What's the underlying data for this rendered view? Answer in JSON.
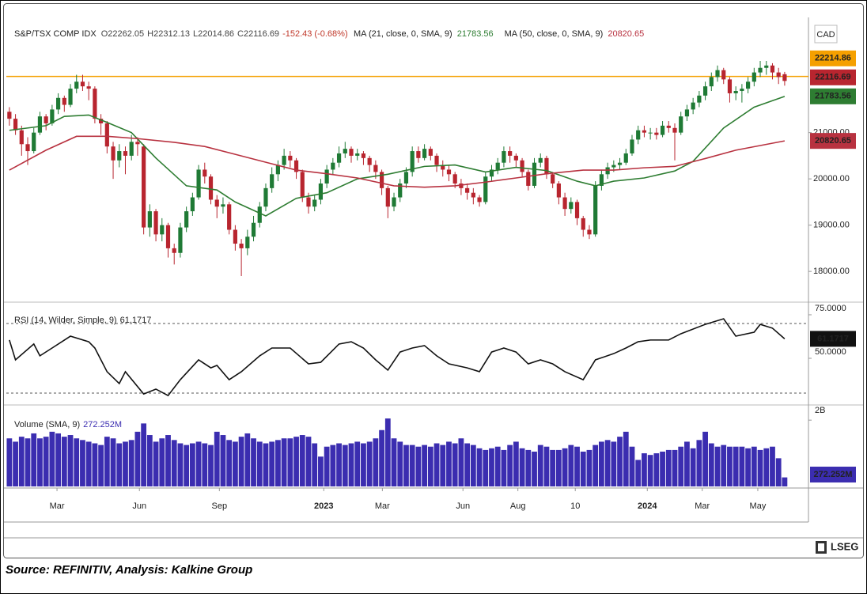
{
  "chart_data": [
    {
      "type": "candlestick",
      "title": "S&P/TSX COMP IDX",
      "header_letters": [
        "O",
        "H",
        "L",
        "C"
      ],
      "change": "-152.43 (-0.68%)",
      "currency": "CAD",
      "up_color": "#1f7a35",
      "down_color": "#b8252f",
      "hline": {
        "value": 22214.86,
        "color": "#f5a000"
      },
      "xlim": [
        -0.5,
        130.9
      ],
      "xticks": [
        {
          "value": 7.8,
          "label": "Mar"
        },
        {
          "value": 21.3,
          "label": "Jun"
        },
        {
          "value": 34.4,
          "label": "Sep"
        },
        {
          "value": 51.5,
          "label": "2023"
        },
        {
          "value": 61.1,
          "label": "Mar"
        },
        {
          "value": 74.3,
          "label": "Jun"
        },
        {
          "value": 83.3,
          "label": "Aug"
        },
        {
          "value": 92.7,
          "label": "10"
        },
        {
          "value": 104.5,
          "label": "2024"
        },
        {
          "value": 113.5,
          "label": "Mar"
        },
        {
          "value": 122.6,
          "label": "May"
        }
      ],
      "ylim": [
        17370,
        23490
      ],
      "yticks": [
        {
          "value": 18000,
          "label": "18000.00"
        },
        {
          "value": 19000,
          "label": "19000.00"
        },
        {
          "value": 20000,
          "label": "20000.00"
        },
        {
          "value": 21000,
          "label": "21000.00"
        }
      ],
      "candles": [
        [
          21450,
          21550,
          21150,
          21300
        ],
        [
          21300,
          21400,
          20950,
          21050
        ],
        [
          21050,
          21150,
          20500,
          20750
        ],
        [
          20750,
          20900,
          20300,
          20600
        ],
        [
          20600,
          21100,
          20550,
          21000
        ],
        [
          21000,
          21450,
          20950,
          21350
        ],
        [
          21350,
          21400,
          21050,
          21200
        ],
        [
          21200,
          21600,
          21150,
          21500
        ],
        [
          21500,
          21850,
          21400,
          21750
        ],
        [
          21750,
          21800,
          21450,
          21600
        ],
        [
          21600,
          22050,
          21550,
          21950
        ],
        [
          21950,
          22250,
          21850,
          22100
        ],
        [
          22100,
          22250,
          21900,
          22000
        ],
        [
          22000,
          22100,
          21700,
          21950
        ],
        [
          21950,
          22000,
          21200,
          21300
        ],
        [
          21300,
          21400,
          20950,
          21200
        ],
        [
          21200,
          21250,
          20550,
          20700
        ],
        [
          20700,
          20800,
          20000,
          20400
        ],
        [
          20400,
          20750,
          20250,
          20600
        ],
        [
          20600,
          20700,
          20100,
          20500
        ],
        [
          20500,
          20950,
          20400,
          20800
        ],
        [
          20800,
          20900,
          20500,
          20750
        ],
        [
          20700,
          20750,
          18800,
          18950
        ],
        [
          18950,
          19450,
          18750,
          19300
        ],
        [
          19300,
          19350,
          18650,
          18800
        ],
        [
          18800,
          19150,
          18650,
          19000
        ],
        [
          19000,
          19050,
          18300,
          18500
        ],
        [
          18500,
          18600,
          18150,
          18400
        ],
        [
          18400,
          19050,
          18300,
          18950
        ],
        [
          18950,
          19400,
          18850,
          19300
        ],
        [
          19300,
          19700,
          19200,
          19600
        ],
        [
          19600,
          20300,
          19550,
          20200
        ],
        [
          20200,
          20350,
          19900,
          20050
        ],
        [
          20050,
          20100,
          19450,
          19550
        ],
        [
          19550,
          19650,
          19150,
          19400
        ],
        [
          19400,
          19600,
          19250,
          19450
        ],
        [
          19450,
          19500,
          18800,
          18900
        ],
        [
          18900,
          19000,
          18450,
          18600
        ],
        [
          18600,
          18700,
          17900,
          18500
        ],
        [
          18500,
          18900,
          18350,
          18750
        ],
        [
          18750,
          19200,
          18650,
          19050
        ],
        [
          19050,
          19500,
          18950,
          19400
        ],
        [
          19400,
          19900,
          19300,
          19800
        ],
        [
          19800,
          20250,
          19700,
          20100
        ],
        [
          20100,
          20400,
          19950,
          20300
        ],
        [
          20300,
          20650,
          20200,
          20500
        ],
        [
          20500,
          20600,
          20250,
          20400
        ],
        [
          20400,
          20450,
          20000,
          20150
        ],
        [
          20150,
          20200,
          19500,
          19600
        ],
        [
          19600,
          19700,
          19250,
          19400
        ],
        [
          19400,
          19650,
          19300,
          19550
        ],
        [
          19550,
          20000,
          19450,
          19900
        ],
        [
          19900,
          20300,
          19800,
          20200
        ],
        [
          20200,
          20450,
          20100,
          20350
        ],
        [
          20350,
          20700,
          20250,
          20550
        ],
        [
          20550,
          20800,
          20450,
          20650
        ],
        [
          20650,
          20700,
          20350,
          20500
        ],
        [
          20500,
          20650,
          20400,
          20550
        ],
        [
          20550,
          20600,
          20300,
          20450
        ],
        [
          20450,
          20500,
          20150,
          20300
        ],
        [
          20300,
          20400,
          20000,
          20150
        ],
        [
          20150,
          20200,
          19650,
          19800
        ],
        [
          19800,
          19850,
          19150,
          19400
        ],
        [
          19400,
          19700,
          19300,
          19600
        ],
        [
          19600,
          20000,
          19500,
          19900
        ],
        [
          19900,
          20250,
          19800,
          20150
        ],
        [
          20150,
          20700,
          20050,
          20600
        ],
        [
          20600,
          20700,
          20350,
          20450
        ],
        [
          20450,
          20750,
          20400,
          20650
        ],
        [
          20650,
          20700,
          20400,
          20500
        ],
        [
          20500,
          20550,
          20150,
          20300
        ],
        [
          20300,
          20400,
          20050,
          20200
        ],
        [
          20200,
          20300,
          19950,
          20100
        ],
        [
          20100,
          20150,
          19800,
          19900
        ],
        [
          19900,
          20000,
          19650,
          19800
        ],
        [
          19800,
          19900,
          19550,
          19700
        ],
        [
          19700,
          19800,
          19450,
          19600
        ],
        [
          19600,
          19650,
          19400,
          19500
        ],
        [
          19500,
          20150,
          19450,
          20050
        ],
        [
          20050,
          20300,
          19950,
          20200
        ],
        [
          20200,
          20450,
          20100,
          20350
        ],
        [
          20350,
          20700,
          20250,
          20600
        ],
        [
          20600,
          20700,
          20350,
          20500
        ],
        [
          20500,
          20550,
          20250,
          20400
        ],
        [
          20400,
          20450,
          20050,
          20150
        ],
        [
          20150,
          20200,
          19750,
          19850
        ],
        [
          19850,
          20450,
          19800,
          20350
        ],
        [
          20350,
          20550,
          20250,
          20450
        ],
        [
          20450,
          20500,
          20000,
          20100
        ],
        [
          20100,
          20150,
          19800,
          19900
        ],
        [
          19900,
          19950,
          19450,
          19600
        ],
        [
          19600,
          19700,
          19200,
          19350
        ],
        [
          19350,
          19600,
          19250,
          19500
        ],
        [
          19500,
          19550,
          19000,
          19150
        ],
        [
          19150,
          19200,
          18750,
          18900
        ],
        [
          18900,
          19000,
          18700,
          18800
        ],
        [
          18800,
          19950,
          18750,
          19850
        ],
        [
          19850,
          20200,
          19750,
          20100
        ],
        [
          20100,
          20350,
          20000,
          20250
        ],
        [
          20250,
          20400,
          20150,
          20300
        ],
        [
          20300,
          20450,
          20200,
          20350
        ],
        [
          20350,
          20650,
          20300,
          20550
        ],
        [
          20550,
          20950,
          20500,
          20850
        ],
        [
          20850,
          21150,
          20750,
          21050
        ],
        [
          21050,
          21150,
          20900,
          21000
        ],
        [
          21000,
          21100,
          20850,
          21000
        ],
        [
          21000,
          21100,
          20850,
          20950
        ],
        [
          20950,
          21250,
          20900,
          21150
        ],
        [
          21150,
          21250,
          21000,
          21100
        ],
        [
          21100,
          21200,
          20400,
          21000
        ],
        [
          21000,
          21450,
          20950,
          21350
        ],
        [
          21350,
          21600,
          21250,
          21500
        ],
        [
          21500,
          21750,
          21400,
          21650
        ],
        [
          21650,
          21900,
          21550,
          21800
        ],
        [
          21800,
          22100,
          21700,
          22000
        ],
        [
          22000,
          22300,
          21900,
          22200
        ],
        [
          22200,
          22450,
          22100,
          22350
        ],
        [
          22350,
          22400,
          22050,
          22150
        ],
        [
          22150,
          22200,
          21650,
          21850
        ],
        [
          21850,
          22000,
          21700,
          21900
        ],
        [
          21900,
          22050,
          21650,
          21950
        ],
        [
          21950,
          22200,
          21850,
          22100
        ],
        [
          22100,
          22400,
          22000,
          22300
        ],
        [
          22300,
          22550,
          22200,
          22400
        ],
        [
          22400,
          22550,
          22250,
          22450
        ],
        [
          22450,
          22500,
          22150,
          22300
        ],
        [
          22300,
          22400,
          22050,
          22200
        ],
        [
          22262.05,
          22312.13,
          22014.86,
          22116.69
        ]
      ],
      "series": [
        {
          "name": "MA (21, close, 0, SMA, 9)",
          "color": "#2e7d32",
          "x": [
            0,
            6,
            9,
            13,
            16,
            20,
            24,
            29,
            34,
            37,
            42,
            47,
            52,
            57,
            62,
            68,
            73,
            78,
            83,
            88,
            93,
            96,
            99,
            104,
            109,
            112,
            117,
            122,
            127
          ],
          "values": [
            21050,
            21150,
            21350,
            21380,
            21220,
            21000,
            20450,
            19850,
            19760,
            19500,
            19200,
            19580,
            19700,
            20000,
            20100,
            20270,
            20300,
            20150,
            20250,
            20180,
            19950,
            19850,
            19950,
            20020,
            20170,
            20380,
            21100,
            21550,
            21783.56
          ]
        },
        {
          "name": "MA (50, close, 0, SMA, 9)",
          "color": "#b83240",
          "x": [
            0,
            6,
            11,
            16,
            21,
            27,
            32,
            37,
            42,
            47,
            52,
            57,
            63,
            68,
            73,
            78,
            83,
            88,
            94,
            99,
            104,
            109,
            114,
            119,
            127
          ],
          "values": [
            20190,
            20620,
            20920,
            20920,
            20870,
            20790,
            20700,
            20530,
            20360,
            20190,
            20110,
            20020,
            19850,
            19820,
            19850,
            19930,
            20020,
            20110,
            20190,
            20190,
            20240,
            20270,
            20440,
            20620,
            20820.65
          ]
        }
      ]
    },
    {
      "type": "line",
      "title": "RSI (14, Wilder, Simple, 9)",
      "color": "#111111",
      "ylim": [
        24.1,
        81.8
      ],
      "yticks": [
        {
          "value": 50,
          "label": "50.0000"
        },
        {
          "value": 75,
          "label": "75.0000"
        }
      ],
      "levels": [
        70,
        30
      ],
      "x": [
        0,
        1,
        4,
        5,
        7,
        10,
        13,
        14,
        16,
        18,
        19,
        22,
        24,
        26,
        28,
        31,
        33,
        34,
        36,
        38,
        41,
        43,
        46,
        49,
        51,
        54,
        56,
        58,
        60,
        62,
        64,
        66,
        68,
        70,
        72,
        75,
        77,
        79,
        81,
        83,
        85,
        87,
        89,
        91,
        94,
        96,
        99,
        101,
        103,
        105,
        108,
        110,
        114,
        117,
        119,
        122,
        123,
        125,
        127
      ],
      "values": [
        60.5,
        49.1,
        58.2,
        51.4,
        55.9,
        62.7,
        59.5,
        55.9,
        42.3,
        35.5,
        42.3,
        29.5,
        32.3,
        28.6,
        37.7,
        49.1,
        44.5,
        45.9,
        37.7,
        42.3,
        51.4,
        55.9,
        55.9,
        46.8,
        47.7,
        58.2,
        59.5,
        55.9,
        49.1,
        43.2,
        53.6,
        55.9,
        57.3,
        51.4,
        46.8,
        44.5,
        42.3,
        53.6,
        55.9,
        53.6,
        46.8,
        49.1,
        46.8,
        42.3,
        37.7,
        49.1,
        52.7,
        55.9,
        59.5,
        60.5,
        60.5,
        64.1,
        69.5,
        72.7,
        62.7,
        65,
        69.5,
        67.3,
        61.1717
      ]
    },
    {
      "type": "bar",
      "title": "Volume (SMA, 9)",
      "color": "#3b2db0",
      "ylim": [
        0,
        2410
      ],
      "yticks": [
        {
          "value": 2000,
          "label": "2B"
        }
      ],
      "last_value_label": "272.252M",
      "values": [
        1450,
        1350,
        1500,
        1450,
        1600,
        1450,
        1500,
        1650,
        1600,
        1500,
        1550,
        1450,
        1400,
        1350,
        1300,
        1250,
        1500,
        1450,
        1300,
        1350,
        1400,
        1650,
        1900,
        1550,
        1350,
        1450,
        1550,
        1400,
        1300,
        1250,
        1300,
        1350,
        1300,
        1250,
        1650,
        1550,
        1400,
        1350,
        1500,
        1600,
        1450,
        1350,
        1300,
        1350,
        1400,
        1450,
        1450,
        1500,
        1550,
        1500,
        1300,
        900,
        1200,
        1250,
        1300,
        1250,
        1300,
        1350,
        1300,
        1350,
        1450,
        1700,
        2050,
        1450,
        1350,
        1250,
        1250,
        1200,
        1250,
        1200,
        1300,
        1250,
        1350,
        1300,
        1450,
        1300,
        1250,
        1150,
        1100,
        1150,
        1200,
        1100,
        1250,
        1350,
        1150,
        1100,
        1050,
        1250,
        1200,
        1100,
        1100,
        1150,
        1250,
        1200,
        1050,
        1100,
        1250,
        1350,
        1400,
        1350,
        1500,
        1650,
        1200,
        800,
        1000,
        950,
        1000,
        1050,
        1100,
        1100,
        1200,
        1350,
        1150,
        1400,
        1650,
        1300,
        1200,
        1250,
        1200,
        1200,
        1200,
        1150,
        1200,
        1100,
        1150,
        1200,
        850,
        272.252
      ]
    }
  ],
  "brand": "LSEG",
  "source": "Source: REFINITIV, Analysis: Kalkine Group"
}
